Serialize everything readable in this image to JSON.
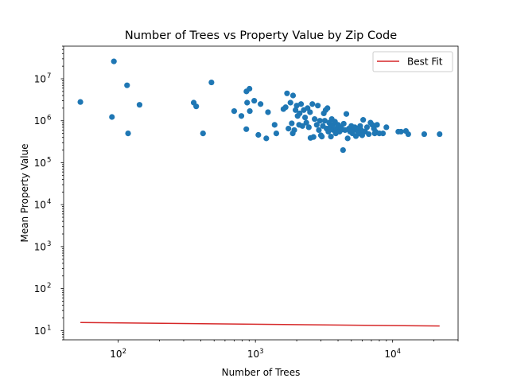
{
  "chart_data": {
    "type": "scatter",
    "title": "Number of Trees vs Property Value by Zip Code",
    "xlabel": "Number of Trees",
    "ylabel": "Mean Property Value",
    "x_scale": "log",
    "y_scale": "log",
    "xlim": [
      40,
      30000
    ],
    "ylim": [
      6,
      60000000
    ],
    "x_ticks": [
      {
        "value": 100,
        "base": "10",
        "exp": "2"
      },
      {
        "value": 1000,
        "base": "10",
        "exp": "3"
      },
      {
        "value": 10000,
        "base": "10",
        "exp": "4"
      }
    ],
    "y_ticks": [
      {
        "value": 10,
        "base": "10",
        "exp": "1"
      },
      {
        "value": 100,
        "base": "10",
        "exp": "2"
      },
      {
        "value": 1000,
        "base": "10",
        "exp": "3"
      },
      {
        "value": 10000,
        "base": "10",
        "exp": "4"
      },
      {
        "value": 100000,
        "base": "10",
        "exp": "5"
      },
      {
        "value": 1000000,
        "base": "10",
        "exp": "6"
      },
      {
        "value": 10000000,
        "base": "10",
        "exp": "7"
      }
    ],
    "grid": false,
    "legend": {
      "placement": "top-right",
      "entries": [
        "Best Fit"
      ]
    },
    "colors": {
      "points": "#1f77b4",
      "fit_line": "#d62728"
    },
    "series": [
      {
        "kind": "scatter",
        "points": [
          [
            53,
            2800000
          ],
          [
            90,
            1230000
          ],
          [
            93,
            26000000
          ],
          [
            116,
            7000000
          ],
          [
            118,
            500000
          ],
          [
            143,
            2400000
          ],
          [
            355,
            2700000
          ],
          [
            370,
            2200000
          ],
          [
            415,
            500000
          ],
          [
            478,
            8200000
          ],
          [
            700,
            1700000
          ],
          [
            790,
            1300000
          ],
          [
            858,
            630000
          ],
          [
            860,
            5000000
          ],
          [
            870,
            2700000
          ],
          [
            905,
            5800000
          ],
          [
            910,
            1700000
          ],
          [
            980,
            3000000
          ],
          [
            1050,
            460000
          ],
          [
            1090,
            2500000
          ],
          [
            1200,
            380000
          ],
          [
            1235,
            1600000
          ],
          [
            1380,
            800000
          ],
          [
            1420,
            500000
          ],
          [
            1600,
            1900000
          ],
          [
            1660,
            2100000
          ],
          [
            1700,
            4500000
          ],
          [
            1740,
            650000
          ],
          [
            1800,
            2700000
          ],
          [
            1840,
            870000
          ],
          [
            1870,
            500000
          ],
          [
            1880,
            4000000
          ],
          [
            1920,
            600000
          ],
          [
            1960,
            1800000
          ],
          [
            2000,
            2300000
          ],
          [
            2030,
            1300000
          ],
          [
            2080,
            800000
          ],
          [
            2100,
            1500000
          ],
          [
            2150,
            2500000
          ],
          [
            2200,
            750000
          ],
          [
            2250,
            1800000
          ],
          [
            2300,
            1200000
          ],
          [
            2350,
            900000
          ],
          [
            2400,
            2000000
          ],
          [
            2450,
            700000
          ],
          [
            2500,
            1600000
          ],
          [
            2520,
            390000
          ],
          [
            2600,
            2500000
          ],
          [
            2650,
            410000
          ],
          [
            2700,
            1100000
          ],
          [
            2800,
            800000
          ],
          [
            2850,
            2300000
          ],
          [
            2900,
            600000
          ],
          [
            2950,
            1000000
          ],
          [
            3000,
            450000
          ],
          [
            3050,
            420000
          ],
          [
            3100,
            750000
          ],
          [
            3150,
            1500000
          ],
          [
            3200,
            1000000
          ],
          [
            3250,
            1800000
          ],
          [
            3300,
            650000
          ],
          [
            3350,
            2000000
          ],
          [
            3400,
            550000
          ],
          [
            3450,
            900000
          ],
          [
            3500,
            700000
          ],
          [
            3550,
            420000
          ],
          [
            3600,
            1100000
          ],
          [
            3650,
            800000
          ],
          [
            3700,
            600000
          ],
          [
            3800,
            950000
          ],
          [
            3850,
            500000
          ],
          [
            3900,
            650000
          ],
          [
            4000,
            800000
          ],
          [
            4100,
            550000
          ],
          [
            4200,
            700000
          ],
          [
            4300,
            620000
          ],
          [
            4350,
            200000
          ],
          [
            4400,
            850000
          ],
          [
            4500,
            600000
          ],
          [
            4600,
            1450000
          ],
          [
            4700,
            380000
          ],
          [
            4800,
            650000
          ],
          [
            4900,
            550000
          ],
          [
            5000,
            750000
          ],
          [
            5100,
            500000
          ],
          [
            5200,
            600000
          ],
          [
            5300,
            700000
          ],
          [
            5400,
            430000
          ],
          [
            5500,
            650000
          ],
          [
            5600,
            550000
          ],
          [
            5700,
            500000
          ],
          [
            5800,
            750000
          ],
          [
            5900,
            600000
          ],
          [
            6000,
            450000
          ],
          [
            6100,
            1050000
          ],
          [
            6300,
            550000
          ],
          [
            6500,
            700000
          ],
          [
            6700,
            480000
          ],
          [
            6900,
            900000
          ],
          [
            7100,
            800000
          ],
          [
            7300,
            650000
          ],
          [
            7400,
            500000
          ],
          [
            7500,
            550000
          ],
          [
            7700,
            800000
          ],
          [
            8000,
            500000
          ],
          [
            8500,
            500000
          ],
          [
            9000,
            700000
          ],
          [
            11000,
            550000
          ],
          [
            11500,
            550000
          ],
          [
            12500,
            570000
          ],
          [
            13000,
            480000
          ],
          [
            17000,
            480000
          ],
          [
            22000,
            480000
          ]
        ]
      },
      {
        "kind": "line",
        "name": "Best Fit",
        "points": [
          [
            53,
            15.5
          ],
          [
            22000,
            12.8
          ]
        ]
      }
    ]
  }
}
